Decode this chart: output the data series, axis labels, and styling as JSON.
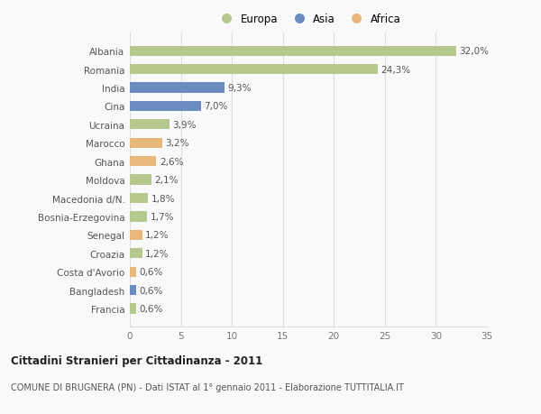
{
  "countries": [
    "Albania",
    "Romania",
    "India",
    "Cina",
    "Ucraina",
    "Marocco",
    "Ghana",
    "Moldova",
    "Macedonia d/N.",
    "Bosnia-Erzegovina",
    "Senegal",
    "Croazia",
    "Costa d'Avorio",
    "Bangladesh",
    "Francia"
  ],
  "values": [
    32.0,
    24.3,
    9.3,
    7.0,
    3.9,
    3.2,
    2.6,
    2.1,
    1.8,
    1.7,
    1.2,
    1.2,
    0.6,
    0.6,
    0.6
  ],
  "labels": [
    "32,0%",
    "24,3%",
    "9,3%",
    "7,0%",
    "3,9%",
    "3,2%",
    "2,6%",
    "2,1%",
    "1,8%",
    "1,7%",
    "1,2%",
    "1,2%",
    "0,6%",
    "0,6%",
    "0,6%"
  ],
  "continents": [
    "Europa",
    "Europa",
    "Asia",
    "Asia",
    "Europa",
    "Africa",
    "Africa",
    "Europa",
    "Europa",
    "Europa",
    "Africa",
    "Europa",
    "Africa",
    "Asia",
    "Europa"
  ],
  "colors": {
    "Europa": "#b5c98e",
    "Asia": "#6b8cbf",
    "Africa": "#e8b87a"
  },
  "xlim": [
    0,
    35
  ],
  "xticks": [
    0,
    5,
    10,
    15,
    20,
    25,
    30,
    35
  ],
  "title": "Cittadini Stranieri per Cittadinanza - 2011",
  "subtitle": "COMUNE DI BRUGNERA (PN) - Dati ISTAT al 1° gennaio 2011 - Elaborazione TUTTITALIA.IT",
  "bg_color": "#f9f9f9",
  "grid_color": "#dddddd"
}
